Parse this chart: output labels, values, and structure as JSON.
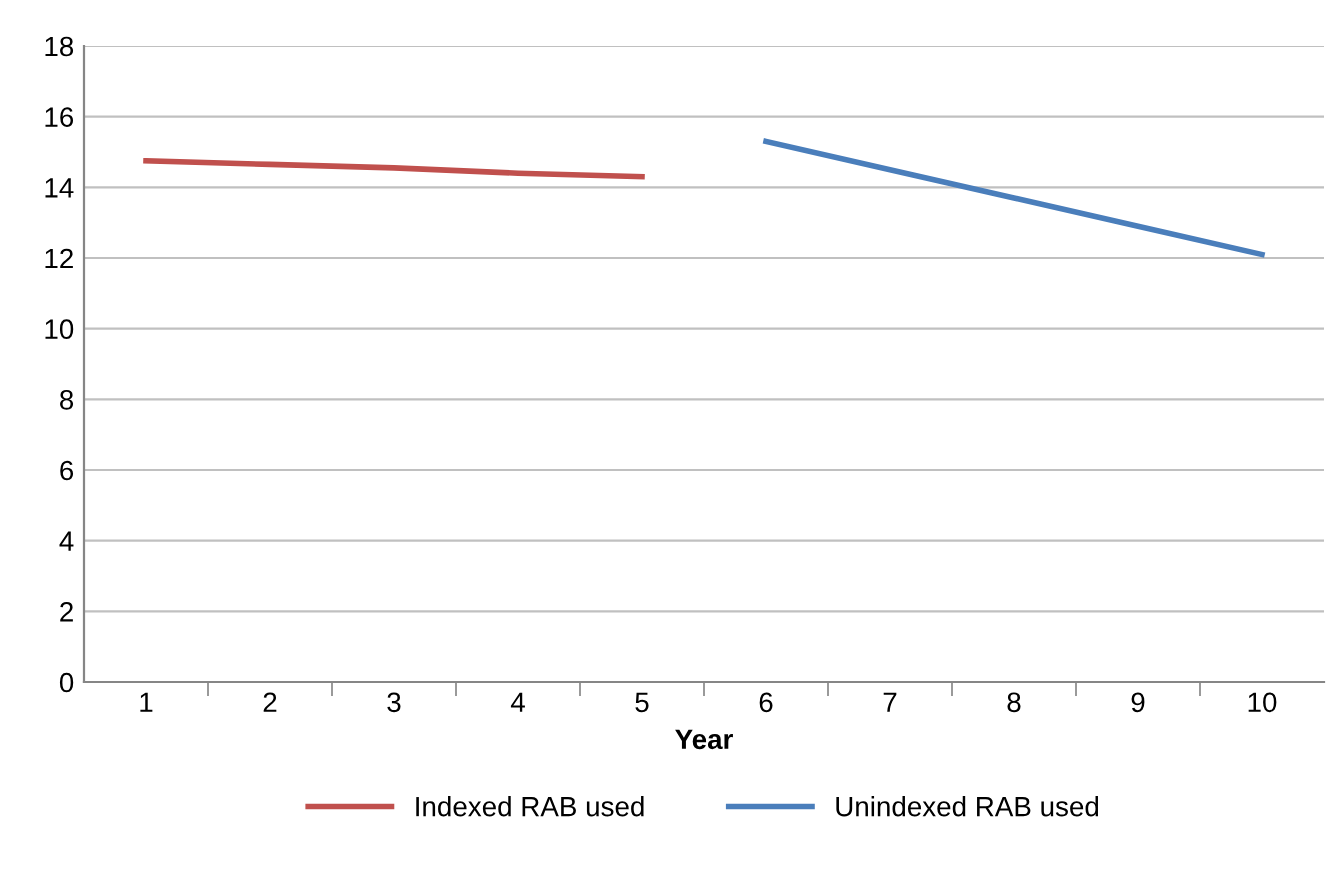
{
  "chart_data": {
    "type": "line",
    "xlabel": "Year",
    "categories": [
      "1",
      "2",
      "3",
      "4",
      "5",
      "6",
      "7",
      "8",
      "9",
      "10"
    ],
    "series": [
      {
        "name": "Indexed RAB used",
        "color": "#c0504d",
        "values": [
          14.75,
          14.65,
          14.55,
          14.4,
          14.3,
          null,
          null,
          null,
          null,
          null
        ]
      },
      {
        "name": "Unindexed RAB used",
        "color": "#4a7ebb",
        "values": [
          null,
          null,
          null,
          null,
          null,
          15.3,
          14.5,
          13.7,
          12.9,
          12.1
        ]
      }
    ],
    "ylim": [
      0,
      18
    ],
    "yticks": [
      0,
      2,
      4,
      6,
      8,
      10,
      12,
      14,
      16,
      18
    ],
    "grid": "y",
    "legend": "bottom",
    "marker": "none",
    "line_style": "solid"
  }
}
